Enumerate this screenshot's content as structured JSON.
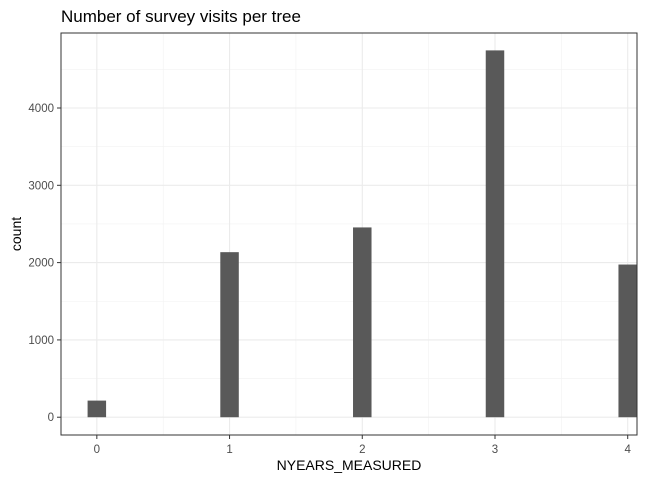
{
  "chart_data": {
    "type": "bar",
    "title": "Number of survey visits per tree",
    "xlabel": "NYEARS_MEASURED",
    "ylabel": "count",
    "categories": [
      "0",
      "1",
      "2",
      "3",
      "4"
    ],
    "x": [
      0,
      1,
      2,
      3,
      4
    ],
    "values": [
      215,
      2135,
      2455,
      4745,
      1975
    ],
    "xticks": [
      "0",
      "1",
      "2",
      "3",
      "4"
    ],
    "yticks": [
      0,
      1000,
      2000,
      3000,
      4000
    ],
    "ytick_labels": [
      "0",
      "1000",
      "2000",
      "3000",
      "4000"
    ],
    "xlim": [
      -0.27,
      4.07
    ],
    "ylim": [
      -230,
      4970
    ],
    "grid": true,
    "legend": "none",
    "colors": {
      "bar": "#595959",
      "grid_major": "#ebebeb",
      "grid_minor": "#f2f2f2",
      "panel_border": "#333333",
      "background": "#ffffff"
    }
  }
}
